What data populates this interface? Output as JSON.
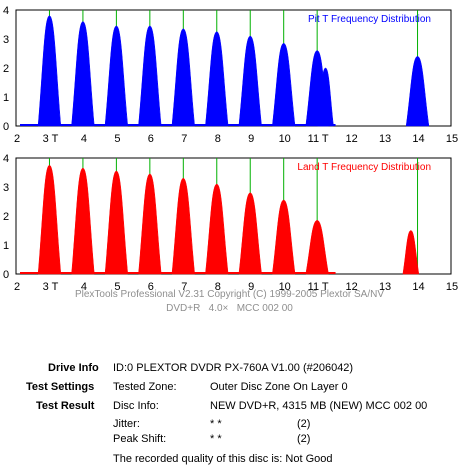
{
  "chart_data": [
    {
      "type": "area",
      "title": "Pit T Frequency Distribution",
      "color": "#0000ff",
      "x_ticks": [
        "2",
        "3 T",
        "4",
        "5",
        "6",
        "7",
        "8",
        "9",
        "10",
        "11 T",
        "12",
        "13",
        "14",
        "15"
      ],
      "y_ticks": [
        "0",
        "1",
        "2",
        "3",
        "4"
      ],
      "xlim": [
        2,
        15
      ],
      "ylim": [
        0,
        4
      ],
      "grid_lines_at": [
        3,
        4,
        5,
        6,
        7,
        8,
        9,
        10,
        11,
        14
      ],
      "peaks": [
        {
          "x": 3,
          "y": 3.8
        },
        {
          "x": 4,
          "y": 3.6
        },
        {
          "x": 5,
          "y": 3.45
        },
        {
          "x": 6,
          "y": 3.45
        },
        {
          "x": 7,
          "y": 3.35
        },
        {
          "x": 8,
          "y": 3.25
        },
        {
          "x": 9,
          "y": 3.1
        },
        {
          "x": 10,
          "y": 2.85
        },
        {
          "x": 11,
          "y": 2.6
        },
        {
          "x": 11.25,
          "y": 2.0
        },
        {
          "x": 14,
          "y": 2.4
        }
      ]
    },
    {
      "type": "area",
      "title": "Land T Frequency Distribution",
      "color": "#ff0000",
      "x_ticks": [
        "2",
        "3 T",
        "4",
        "5",
        "6",
        "7",
        "8",
        "9",
        "10",
        "11 T",
        "12",
        "13",
        "14",
        "15"
      ],
      "y_ticks": [
        "0",
        "1",
        "2",
        "3",
        "4"
      ],
      "xlim": [
        2,
        15
      ],
      "ylim": [
        0,
        4
      ],
      "grid_lines_at": [
        3,
        4,
        5,
        6,
        7,
        8,
        9,
        10,
        11,
        14
      ],
      "peaks": [
        {
          "x": 3,
          "y": 3.75
        },
        {
          "x": 4,
          "y": 3.65
        },
        {
          "x": 5,
          "y": 3.55
        },
        {
          "x": 6,
          "y": 3.45
        },
        {
          "x": 7,
          "y": 3.3
        },
        {
          "x": 8,
          "y": 3.1
        },
        {
          "x": 9,
          "y": 2.8
        },
        {
          "x": 10,
          "y": 2.55
        },
        {
          "x": 11,
          "y": 1.85
        },
        {
          "x": 13.8,
          "y": 1.5
        }
      ]
    }
  ],
  "copyright": {
    "line1": "PlexTools Professional V2.31 Copyright (C) 1999-2005 Plextor SA/NV",
    "line2": "DVD+R   4.0×   MCC 002 00"
  },
  "info": {
    "drive_label": "Drive Info",
    "drive_value": "ID:0 PLEXTOR DVDR PX-760A V1.00 (#206042)",
    "settings_label": "Test Settings",
    "tested_zone_key": "Tested Zone:",
    "tested_zone_value": "Outer Disc Zone On Layer 0",
    "result_label": "Test Result",
    "disc_info_key": "Disc Info:",
    "disc_info_value": "NEW DVD+R, 4315 MB (NEW) MCC 002 00",
    "jitter_key": "Jitter:",
    "jitter_stars": "* *",
    "jitter_value": "(2)",
    "peak_shift_key": "Peak Shift:",
    "peak_shift_stars": "* *",
    "peak_shift_value": "(2)",
    "quality_text": "The recorded quality of this disc is: Not Good"
  }
}
